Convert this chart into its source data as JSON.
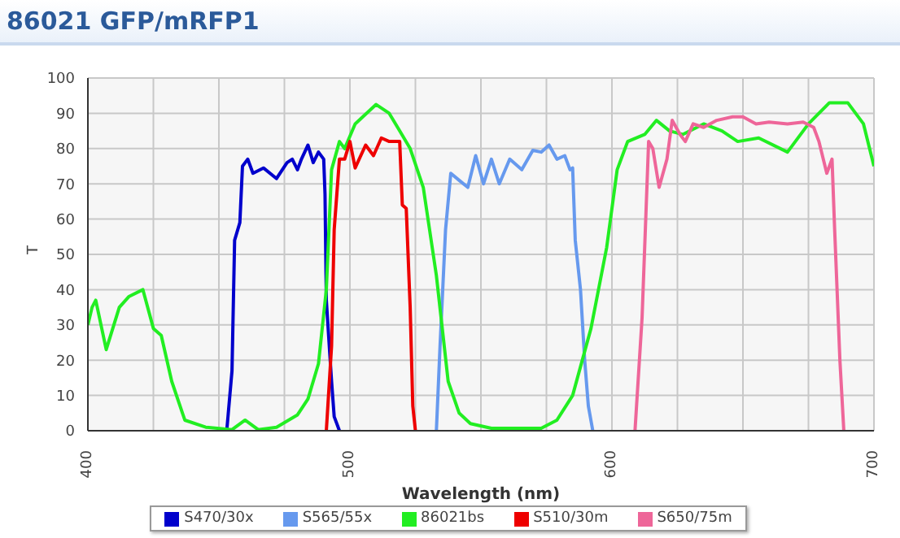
{
  "chart_data": {
    "type": "line",
    "title": "86021 GFP/mRFP1",
    "xlabel": "Wavelength (nm)",
    "ylabel": "T",
    "xlim": [
      400,
      700
    ],
    "xticks": [
      400,
      {
        "value": 425,
        "label": null
      },
      {
        "value": 450,
        "label": null
      },
      {
        "value": 475,
        "label": null
      },
      500,
      {
        "value": 525,
        "label": null
      },
      {
        "value": 550,
        "label": null
      },
      {
        "value": 575,
        "label": null
      },
      600,
      {
        "value": 625,
        "label": null
      },
      {
        "value": 650,
        "label": null
      },
      {
        "value": 675,
        "label": null
      },
      700
    ],
    "ylim": [
      0,
      100
    ],
    "yticks": [
      0,
      10,
      20,
      30,
      40,
      50,
      60,
      70,
      80,
      90,
      100
    ],
    "grid": true,
    "legend": "bottom",
    "marker": "none",
    "line_style": "solid",
    "series": [
      {
        "name": "S470/30x",
        "color": "#0000cc",
        "x": [
          453,
          455,
          456,
          458,
          459,
          461,
          463,
          467,
          472,
          476,
          478,
          480,
          481.5,
          484,
          486,
          488,
          490,
          490.5,
          491,
          493,
          494,
          496
        ],
        "values": [
          0,
          17,
          54,
          59,
          75,
          77,
          73,
          74.5,
          71.5,
          76,
          77,
          74,
          77,
          81,
          76,
          79,
          77,
          67,
          37,
          14,
          4,
          0
        ]
      },
      {
        "name": "S565/55x",
        "color": "#6699ee",
        "x": [
          533,
          534.4,
          536.5,
          538.5,
          541.7,
          545,
          548,
          551,
          554,
          557,
          561,
          565.6,
          569.8,
          573,
          576,
          579,
          582,
          584,
          585,
          586,
          588,
          589.6,
          591,
          592.7
        ],
        "values": [
          0,
          24,
          57,
          73,
          71,
          69,
          78,
          70,
          77,
          70,
          77,
          74,
          79.5,
          79,
          81,
          77,
          78,
          74,
          74.5,
          54,
          40,
          20,
          7,
          0
        ]
      },
      {
        "name": "86021bs",
        "color": "#22ee22",
        "x": [
          400,
          401.6,
          403,
          407,
          412,
          415.6,
          421,
          425,
          428,
          432,
          437,
          445,
          455,
          460,
          465,
          472,
          480,
          484,
          488,
          491,
          493,
          496,
          498,
          502,
          510,
          515,
          519,
          523,
          528,
          533,
          537.5,
          541.7,
          546,
          554,
          573,
          579,
          585,
          592,
          598,
          602,
          606,
          612.5,
          617,
          622,
          627,
          635,
          642,
          648,
          656,
          667,
          675,
          683,
          690,
          696,
          700
        ],
        "values": [
          30,
          35,
          37,
          23,
          35,
          38,
          40,
          29,
          27,
          14,
          3,
          1,
          0.3,
          3,
          0.3,
          1,
          4.5,
          9,
          19,
          40,
          74,
          82,
          80,
          87,
          92.5,
          90,
          85,
          80,
          69,
          44,
          14,
          5,
          2,
          0.7,
          0.7,
          3,
          10,
          29,
          52,
          74,
          82,
          84,
          88,
          85,
          84,
          87,
          85,
          82,
          83,
          79,
          87,
          93,
          93,
          87,
          75
        ]
      },
      {
        "name": "S510/30m",
        "color": "#ee0000",
        "x": [
          491,
          493,
          494,
          496,
          498,
          500,
          502,
          506,
          509,
          512,
          515,
          519,
          520,
          521.5,
          523,
          524,
          525
        ],
        "values": [
          0,
          24,
          57,
          77,
          77,
          82,
          74.5,
          81,
          78,
          83,
          82,
          82,
          64,
          63,
          35,
          7,
          0
        ]
      },
      {
        "name": "S650/75m",
        "color": "#ee6699",
        "x": [
          608.8,
          611.5,
          614,
          615.6,
          618,
          621,
          623,
          626,
          628,
          631,
          635,
          640,
          646,
          650,
          655,
          660,
          667,
          673,
          677,
          679,
          682,
          684,
          685,
          687,
          688.5
        ],
        "values": [
          0,
          32,
          82,
          80,
          69,
          77,
          88,
          84,
          82,
          87,
          86,
          88,
          89,
          89,
          87,
          87.5,
          87,
          87.5,
          86,
          82,
          73,
          77,
          57,
          20,
          0
        ]
      }
    ]
  }
}
